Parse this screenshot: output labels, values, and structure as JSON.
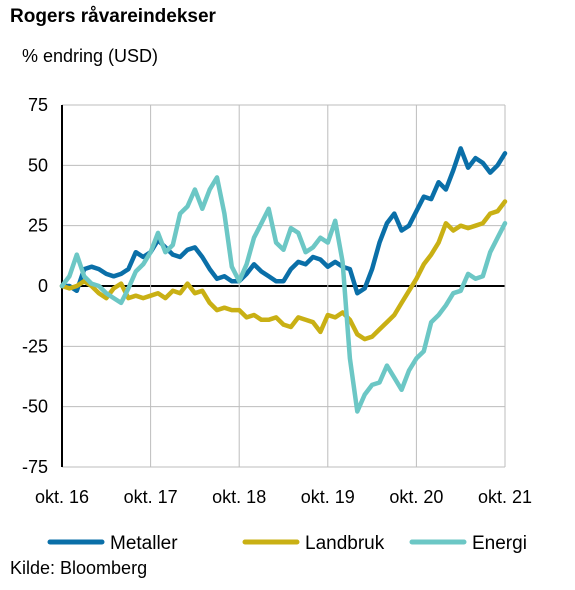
{
  "header": {
    "title": "Rogers råvareindekser",
    "unit": "% endring (USD)"
  },
  "footer": {
    "source": "Kilde: Bloomberg"
  },
  "colors": {
    "metaller": "#0a6fa8",
    "landbruk": "#c9b014",
    "energi": "#6cc7c5",
    "grid": "#bdbdbd",
    "axis": "#000000"
  },
  "chart_data": {
    "type": "line",
    "ylim": [
      -75,
      75
    ],
    "yticks": [
      75,
      50,
      25,
      0,
      -25,
      -50,
      -75
    ],
    "xlim": [
      0,
      60
    ],
    "xticks": [
      {
        "x": 0,
        "label": "okt. 16"
      },
      {
        "x": 12,
        "label": "okt. 17"
      },
      {
        "x": 24,
        "label": "okt. 18"
      },
      {
        "x": 36,
        "label": "okt. 19"
      },
      {
        "x": 48,
        "label": "okt. 20"
      },
      {
        "x": 60,
        "label": "okt. 21"
      }
    ],
    "grid": true,
    "legend_position": "bottom",
    "series": [
      {
        "name": "Metaller",
        "color": "#0a6fa8",
        "points": [
          [
            0,
            0
          ],
          [
            1,
            0
          ],
          [
            2,
            -2
          ],
          [
            3,
            7
          ],
          [
            4,
            8
          ],
          [
            5,
            7
          ],
          [
            6,
            5
          ],
          [
            7,
            4
          ],
          [
            8,
            5
          ],
          [
            9,
            7
          ],
          [
            10,
            14
          ],
          [
            11,
            12
          ],
          [
            12,
            14
          ],
          [
            13,
            19
          ],
          [
            14,
            16
          ],
          [
            15,
            13
          ],
          [
            16,
            12
          ],
          [
            17,
            15
          ],
          [
            18,
            16
          ],
          [
            19,
            12
          ],
          [
            20,
            7
          ],
          [
            21,
            3
          ],
          [
            22,
            4
          ],
          [
            23,
            2
          ],
          [
            24,
            2
          ],
          [
            25,
            5
          ],
          [
            26,
            9
          ],
          [
            27,
            6
          ],
          [
            28,
            4
          ],
          [
            29,
            2
          ],
          [
            30,
            2
          ],
          [
            31,
            7
          ],
          [
            32,
            10
          ],
          [
            33,
            9
          ],
          [
            34,
            12
          ],
          [
            35,
            11
          ],
          [
            36,
            8
          ],
          [
            37,
            10
          ],
          [
            38,
            8
          ],
          [
            39,
            7
          ],
          [
            40,
            -3
          ],
          [
            41,
            -1
          ],
          [
            42,
            7
          ],
          [
            43,
            18
          ],
          [
            44,
            26
          ],
          [
            45,
            30
          ],
          [
            46,
            23
          ],
          [
            47,
            25
          ],
          [
            48,
            31
          ],
          [
            49,
            37
          ],
          [
            50,
            36
          ],
          [
            51,
            43
          ],
          [
            52,
            40
          ],
          [
            53,
            48
          ],
          [
            54,
            57
          ],
          [
            55,
            49
          ],
          [
            56,
            53
          ],
          [
            57,
            51
          ],
          [
            58,
            47
          ],
          [
            59,
            50
          ],
          [
            60,
            55
          ]
        ]
      },
      {
        "name": "Landbruk",
        "color": "#c9b014",
        "points": [
          [
            0,
            0
          ],
          [
            1,
            -1
          ],
          [
            2,
            0
          ],
          [
            3,
            2
          ],
          [
            4,
            0
          ],
          [
            5,
            -3
          ],
          [
            6,
            -5
          ],
          [
            7,
            -1
          ],
          [
            8,
            1
          ],
          [
            9,
            -5
          ],
          [
            10,
            -4
          ],
          [
            11,
            -5
          ],
          [
            12,
            -4
          ],
          [
            13,
            -3
          ],
          [
            14,
            -5
          ],
          [
            15,
            -2
          ],
          [
            16,
            -3
          ],
          [
            17,
            1
          ],
          [
            18,
            -3
          ],
          [
            19,
            -2
          ],
          [
            20,
            -7
          ],
          [
            21,
            -10
          ],
          [
            22,
            -9
          ],
          [
            23,
            -10
          ],
          [
            24,
            -10
          ],
          [
            25,
            -13
          ],
          [
            26,
            -12
          ],
          [
            27,
            -14
          ],
          [
            28,
            -14
          ],
          [
            29,
            -13
          ],
          [
            30,
            -16
          ],
          [
            31,
            -17
          ],
          [
            32,
            -13
          ],
          [
            33,
            -14
          ],
          [
            34,
            -15
          ],
          [
            35,
            -19
          ],
          [
            36,
            -12
          ],
          [
            37,
            -13
          ],
          [
            38,
            -11
          ],
          [
            39,
            -14
          ],
          [
            40,
            -20
          ],
          [
            41,
            -22
          ],
          [
            42,
            -21
          ],
          [
            43,
            -18
          ],
          [
            44,
            -15
          ],
          [
            45,
            -12
          ],
          [
            46,
            -7
          ],
          [
            47,
            -2
          ],
          [
            48,
            3
          ],
          [
            49,
            9
          ],
          [
            50,
            13
          ],
          [
            51,
            18
          ],
          [
            52,
            26
          ],
          [
            53,
            23
          ],
          [
            54,
            25
          ],
          [
            55,
            24
          ],
          [
            56,
            25
          ],
          [
            57,
            26
          ],
          [
            58,
            30
          ],
          [
            59,
            31
          ],
          [
            60,
            35
          ]
        ]
      },
      {
        "name": "Energi",
        "color": "#6cc7c5",
        "points": [
          [
            0,
            0
          ],
          [
            1,
            4
          ],
          [
            2,
            13
          ],
          [
            3,
            4
          ],
          [
            4,
            1
          ],
          [
            5,
            0
          ],
          [
            6,
            -3
          ],
          [
            7,
            -5
          ],
          [
            8,
            -7
          ],
          [
            9,
            -1
          ],
          [
            10,
            6
          ],
          [
            11,
            9
          ],
          [
            12,
            14
          ],
          [
            13,
            22
          ],
          [
            14,
            14
          ],
          [
            15,
            17
          ],
          [
            16,
            30
          ],
          [
            17,
            33
          ],
          [
            18,
            40
          ],
          [
            19,
            32
          ],
          [
            20,
            40
          ],
          [
            21,
            45
          ],
          [
            22,
            30
          ],
          [
            23,
            8
          ],
          [
            24,
            2
          ],
          [
            25,
            9
          ],
          [
            26,
            20
          ],
          [
            27,
            26
          ],
          [
            28,
            32
          ],
          [
            29,
            18
          ],
          [
            30,
            15
          ],
          [
            31,
            24
          ],
          [
            32,
            22
          ],
          [
            33,
            14
          ],
          [
            34,
            16
          ],
          [
            35,
            20
          ],
          [
            36,
            18
          ],
          [
            37,
            27
          ],
          [
            38,
            10
          ],
          [
            39,
            -30
          ],
          [
            40,
            -52
          ],
          [
            41,
            -45
          ],
          [
            42,
            -41
          ],
          [
            43,
            -40
          ],
          [
            44,
            -33
          ],
          [
            45,
            -38
          ],
          [
            46,
            -43
          ],
          [
            47,
            -35
          ],
          [
            48,
            -30
          ],
          [
            49,
            -27
          ],
          [
            50,
            -15
          ],
          [
            51,
            -12
          ],
          [
            52,
            -8
          ],
          [
            53,
            -3
          ],
          [
            54,
            -2
          ],
          [
            55,
            5
          ],
          [
            56,
            3
          ],
          [
            57,
            4
          ],
          [
            58,
            14
          ],
          [
            59,
            20
          ],
          [
            60,
            26
          ]
        ]
      }
    ]
  }
}
